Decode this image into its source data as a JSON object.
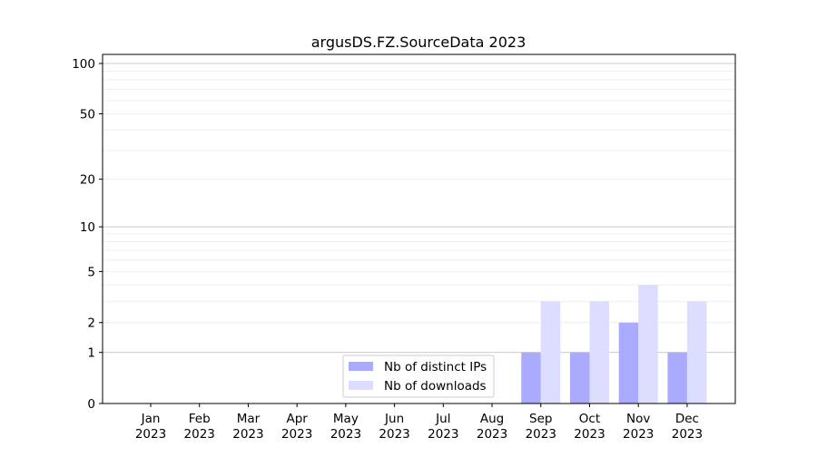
{
  "chart_data": {
    "type": "bar",
    "title": "argusDS.FZ.SourceData 2023",
    "xlabel": "",
    "ylabel": "",
    "yscale": "log(1+y)",
    "ylim": [
      0,
      113
    ],
    "yticks": [
      0,
      1,
      2,
      5,
      10,
      20,
      50,
      100
    ],
    "grid": "y major and minor",
    "legend_position": "lower-center",
    "categories": [
      [
        "Jan",
        "2023"
      ],
      [
        "Feb",
        "2023"
      ],
      [
        "Mar",
        "2023"
      ],
      [
        "Apr",
        "2023"
      ],
      [
        "May",
        "2023"
      ],
      [
        "Jun",
        "2023"
      ],
      [
        "Jul",
        "2023"
      ],
      [
        "Aug",
        "2023"
      ],
      [
        "Sep",
        "2023"
      ],
      [
        "Oct",
        "2023"
      ],
      [
        "Nov",
        "2023"
      ],
      [
        "Dec",
        "2023"
      ]
    ],
    "series": [
      {
        "name": "Nb of distinct IPs",
        "color": "#aaaaff",
        "values": [
          0,
          0,
          0,
          0,
          0,
          0,
          0,
          0,
          1,
          1,
          2,
          1
        ]
      },
      {
        "name": "Nb of downloads",
        "color": "#ddddff",
        "values": [
          0,
          0,
          0,
          0,
          0,
          0,
          0,
          0,
          3,
          3,
          4,
          3
        ]
      }
    ]
  }
}
